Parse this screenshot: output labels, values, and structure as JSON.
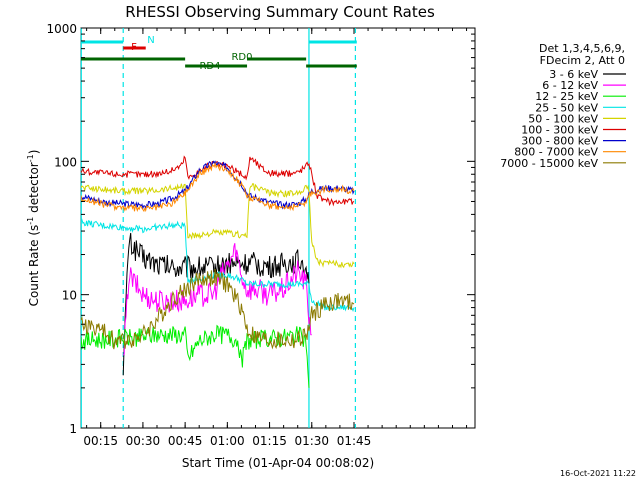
{
  "chart_data": {
    "type": "line",
    "title": "RHESSI Observing Summary Count Rates",
    "xlabel": "Start Time (01-Apr-04 00:08:02)",
    "ylabel_prefix": "Count Rate (s",
    "ylabel_sup": "-1",
    "ylabel_suffix": " detector",
    "ylabel_close": ")",
    "yscale": "log",
    "ylim": [
      1,
      1000
    ],
    "xlim_minutes": [
      8,
      148
    ],
    "x_unit": "minutes after 00:00",
    "x_ticks": [
      {
        "label": "00:15",
        "minute": 15
      },
      {
        "label": "00:30",
        "minute": 30
      },
      {
        "label": "00:45",
        "minute": 45
      },
      {
        "label": "01:00",
        "minute": 60
      },
      {
        "label": "01:15",
        "minute": 75
      },
      {
        "label": "01:30",
        "minute": 90
      },
      {
        "label": "01:45",
        "minute": 105
      }
    ],
    "y_ticks": [
      {
        "label": "1",
        "value": 1
      },
      {
        "label": "10",
        "value": 10
      },
      {
        "label": "100",
        "value": 100
      },
      {
        "label": "1000",
        "value": 1000
      }
    ],
    "legend_header": [
      "Det 1,3,4,5,6,9,",
      "FDecim 2, Att 0"
    ],
    "legend_position": "right",
    "timestamp": "16-Oct-2021 11:22",
    "flags": [
      {
        "label": "N",
        "color": "#00e5e5",
        "segments": [
          [
            8,
            23
          ],
          [
            89,
            106
          ]
        ]
      },
      {
        "label": "F",
        "color": "#dd0000",
        "segments": [
          [
            23,
            31
          ]
        ]
      },
      {
        "label": "RD0",
        "color": "#006400",
        "segments": [
          [
            8,
            45
          ],
          [
            67,
            88
          ]
        ]
      },
      {
        "label": "RD4",
        "color": "#006400",
        "segments": [
          [
            45,
            67
          ],
          [
            88,
            106
          ]
        ]
      }
    ],
    "vlines": [
      {
        "minute": 8.1,
        "color": "#00e5e5",
        "style": "solid"
      },
      {
        "minute": 23,
        "color": "#00e5e5",
        "style": "dashed"
      },
      {
        "minute": 89,
        "color": "#00e5e5",
        "style": "solid"
      },
      {
        "minute": 105.5,
        "color": "#00e5e5",
        "style": "dashed"
      }
    ],
    "series": [
      {
        "name": "3 - 6 keV",
        "color": "#000000",
        "x": [
          23,
          25,
          30,
          35,
          40,
          45,
          50,
          55,
          60,
          65,
          67,
          70,
          75,
          80,
          85,
          88,
          89
        ],
        "y": [
          3,
          25,
          19,
          17,
          16,
          16,
          16,
          16,
          17,
          17,
          17,
          17,
          16,
          17,
          18,
          17,
          12
        ]
      },
      {
        "name": "6 - 12 keV",
        "color": "#ff00ff",
        "x": [
          23,
          25,
          30,
          35,
          40,
          45,
          50,
          55,
          58,
          61,
          63,
          65,
          67,
          70,
          75,
          80,
          85,
          88,
          89,
          90
        ],
        "y": [
          3,
          14,
          10,
          9,
          9,
          9,
          10,
          10,
          14,
          18,
          22,
          14,
          11,
          11,
          10,
          11,
          15,
          12,
          7,
          5
        ]
      },
      {
        "name": "12 - 25 keV",
        "color": "#00ee00",
        "x": [
          8,
          15,
          23,
          30,
          35,
          40,
          45,
          46,
          50,
          55,
          60,
          64,
          65,
          67,
          70,
          75,
          80,
          85,
          88,
          89
        ],
        "y": [
          4.5,
          4.6,
          4.7,
          4.8,
          5,
          5,
          5,
          3.3,
          4.5,
          5,
          5,
          4.5,
          3,
          4.5,
          4.6,
          4.7,
          4.8,
          5,
          4.5,
          2
        ]
      },
      {
        "name": "25 - 50 keV",
        "color": "#00e5e5",
        "x": [
          8,
          15,
          23,
          30,
          35,
          40,
          45,
          46,
          50,
          55,
          60,
          65,
          67,
          70,
          75,
          80,
          85,
          88,
          89,
          90,
          95,
          100,
          105
        ],
        "y": [
          35,
          33,
          32,
          31,
          32,
          33,
          33,
          13,
          13,
          14,
          14,
          13,
          12,
          12,
          12,
          12,
          12,
          12,
          12,
          9,
          8,
          8,
          8
        ]
      },
      {
        "name": "50 - 100 keV",
        "color": "#d4d400",
        "x": [
          8,
          15,
          23,
          30,
          35,
          40,
          45,
          46,
          50,
          55,
          60,
          65,
          67,
          68,
          72,
          75,
          80,
          85,
          88,
          89,
          90,
          92,
          95,
          100,
          105
        ],
        "y": [
          64,
          62,
          60,
          60,
          61,
          63,
          65,
          27,
          28,
          29,
          29,
          28,
          28,
          65,
          62,
          58,
          57,
          58,
          65,
          60,
          25,
          18,
          17,
          17,
          17
        ]
      },
      {
        "name": "100 - 300 keV",
        "color": "#dd0000",
        "x": [
          8,
          15,
          23,
          30,
          35,
          40,
          44,
          45,
          46,
          50,
          55,
          60,
          65,
          67,
          68,
          72,
          75,
          80,
          85,
          88,
          89,
          90,
          92,
          95,
          100,
          105
        ],
        "y": [
          85,
          82,
          80,
          80,
          81,
          85,
          95,
          110,
          75,
          85,
          96,
          92,
          80,
          75,
          108,
          90,
          82,
          80,
          83,
          92,
          100,
          80,
          55,
          50,
          50,
          50
        ]
      },
      {
        "name": "300 - 800 keV",
        "color": "#0000cc",
        "x": [
          8,
          15,
          23,
          30,
          35,
          40,
          45,
          50,
          55,
          60,
          65,
          67,
          68,
          72,
          75,
          80,
          85,
          88,
          89,
          90,
          95,
          100,
          105
        ],
        "y": [
          55,
          50,
          48,
          47,
          48,
          52,
          60,
          85,
          98,
          90,
          68,
          58,
          55,
          52,
          49,
          47,
          48,
          52,
          56,
          60,
          63,
          63,
          60
        ]
      },
      {
        "name": "800 - 7000 keV",
        "color": "#ff8800",
        "x": [
          8,
          15,
          23,
          30,
          35,
          40,
          45,
          50,
          55,
          60,
          65,
          67,
          68,
          72,
          75,
          80,
          85,
          88,
          89,
          90,
          95,
          100,
          105
        ],
        "y": [
          53,
          48,
          45,
          44,
          45,
          48,
          58,
          80,
          93,
          88,
          66,
          56,
          53,
          50,
          47,
          45,
          46,
          50,
          55,
          58,
          62,
          62,
          60
        ]
      },
      {
        "name": "7000 - 15000 keV",
        "color": "#8b7a00",
        "x": [
          8,
          15,
          20,
          23,
          30,
          35,
          40,
          45,
          50,
          55,
          60,
          65,
          67,
          70,
          75,
          80,
          85,
          88,
          89,
          90,
          95,
          100,
          105
        ],
        "y": [
          6,
          5.5,
          4.5,
          4.5,
          5,
          6.5,
          9,
          11,
          13,
          13.5,
          12,
          8,
          5.5,
          4.8,
          4.5,
          4.5,
          4.5,
          5,
          5.5,
          7,
          8.5,
          9,
          8.5
        ]
      }
    ]
  }
}
